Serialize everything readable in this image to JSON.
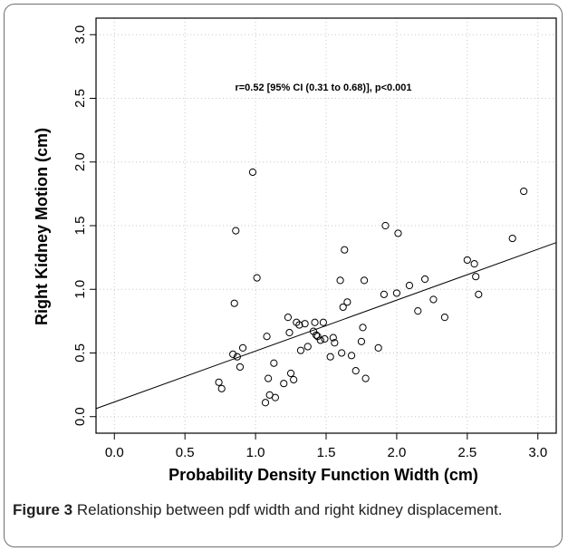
{
  "chart_data": {
    "type": "scatter",
    "title": "",
    "annotation": "r=0.52 [95% CI (0.31 to 0.68)], p<0.001",
    "xlabel": "Probability Density Function Width (cm)",
    "ylabel": "Right Kidney Motion (cm)",
    "xlim": [
      -0.13,
      3.13
    ],
    "ylim": [
      -0.13,
      3.13
    ],
    "xticks": [
      "0.0",
      "0.5",
      "1.0",
      "1.5",
      "2.0",
      "2.5",
      "3.0"
    ],
    "yticks": [
      "0.0",
      "0.5",
      "1.0",
      "1.5",
      "2.0",
      "2.5",
      "3.0"
    ],
    "grid": true,
    "regression_line": {
      "intercept": 0.115,
      "slope": 0.4
    },
    "x": [
      0.74,
      0.76,
      0.84,
      0.85,
      0.86,
      0.87,
      0.89,
      0.91,
      0.98,
      1.01,
      1.07,
      1.08,
      1.09,
      1.1,
      1.13,
      1.14,
      1.2,
      1.23,
      1.24,
      1.25,
      1.27,
      1.29,
      1.31,
      1.32,
      1.35,
      1.37,
      1.41,
      1.42,
      1.43,
      1.44,
      1.46,
      1.48,
      1.49,
      1.53,
      1.55,
      1.56,
      1.6,
      1.61,
      1.62,
      1.63,
      1.65,
      1.68,
      1.71,
      1.75,
      1.76,
      1.77,
      1.78,
      1.87,
      1.91,
      1.92,
      2.0,
      2.01,
      2.09,
      2.15,
      2.2,
      2.26,
      2.34,
      2.5,
      2.55,
      2.56,
      2.58,
      2.82,
      2.9
    ],
    "y": [
      0.27,
      0.22,
      0.49,
      0.89,
      1.46,
      0.47,
      0.39,
      0.54,
      1.92,
      1.09,
      0.11,
      0.63,
      0.3,
      0.17,
      0.42,
      0.15,
      0.26,
      0.78,
      0.66,
      0.34,
      0.29,
      0.74,
      0.72,
      0.52,
      0.73,
      0.55,
      0.67,
      0.74,
      0.64,
      0.63,
      0.6,
      0.74,
      0.61,
      0.47,
      0.62,
      0.58,
      1.07,
      0.5,
      0.86,
      1.31,
      0.9,
      0.48,
      0.36,
      0.59,
      0.7,
      1.07,
      0.3,
      0.54,
      0.96,
      1.5,
      0.97,
      1.44,
      1.03,
      0.83,
      1.08,
      0.92,
      0.78,
      1.23,
      1.2,
      1.1,
      0.96,
      1.4,
      1.77
    ]
  },
  "caption": {
    "label": "Figure 3",
    "text": " Relationship between pdf width and right kidney displacement."
  }
}
